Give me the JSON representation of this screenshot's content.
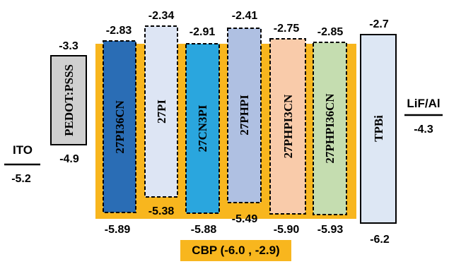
{
  "colors": {
    "cbp": "#F8B61E",
    "ink": "#000000"
  },
  "electrodes": [
    {
      "name": "ITO",
      "level": "-5.2"
    },
    {
      "name": "LiF/Al",
      "level": "-4.3"
    }
  ],
  "layers": [
    {
      "name": "PEDOT:PSSS",
      "top": "-3.3",
      "bottom": "-4.9",
      "fill": "#D0D0D0",
      "dashed": false
    },
    {
      "name": "27PI36CN",
      "top": "-2.83",
      "bottom": "-5.89",
      "fill": "#2A6DB5",
      "dashed": true
    },
    {
      "name": "27PI",
      "top": "-2.34",
      "bottom": "-5.38",
      "fill": "#DDE5F4",
      "dashed": true
    },
    {
      "name": "27CN3PI",
      "top": "-2.91",
      "bottom": "-5.88",
      "fill": "#2AA6DE",
      "dashed": true
    },
    {
      "name": "27PHPI",
      "top": "-2.41",
      "bottom": "-5.49",
      "fill": "#AFC0E2",
      "dashed": true
    },
    {
      "name": "27PHPI3CN",
      "top": "-2.75",
      "bottom": "-5.90",
      "fill": "#F9CBAA",
      "dashed": true
    },
    {
      "name": "27PHPI36CN",
      "top": "-2.85",
      "bottom": "-5.93",
      "fill": "#C5DDB0",
      "dashed": true
    },
    {
      "name": "TPBi",
      "top": "-2.7",
      "bottom": "-6.2",
      "fill": "#DDE7F4",
      "dashed": false
    }
  ],
  "host": {
    "label": "CBP (-6.0 , -2.9)"
  }
}
